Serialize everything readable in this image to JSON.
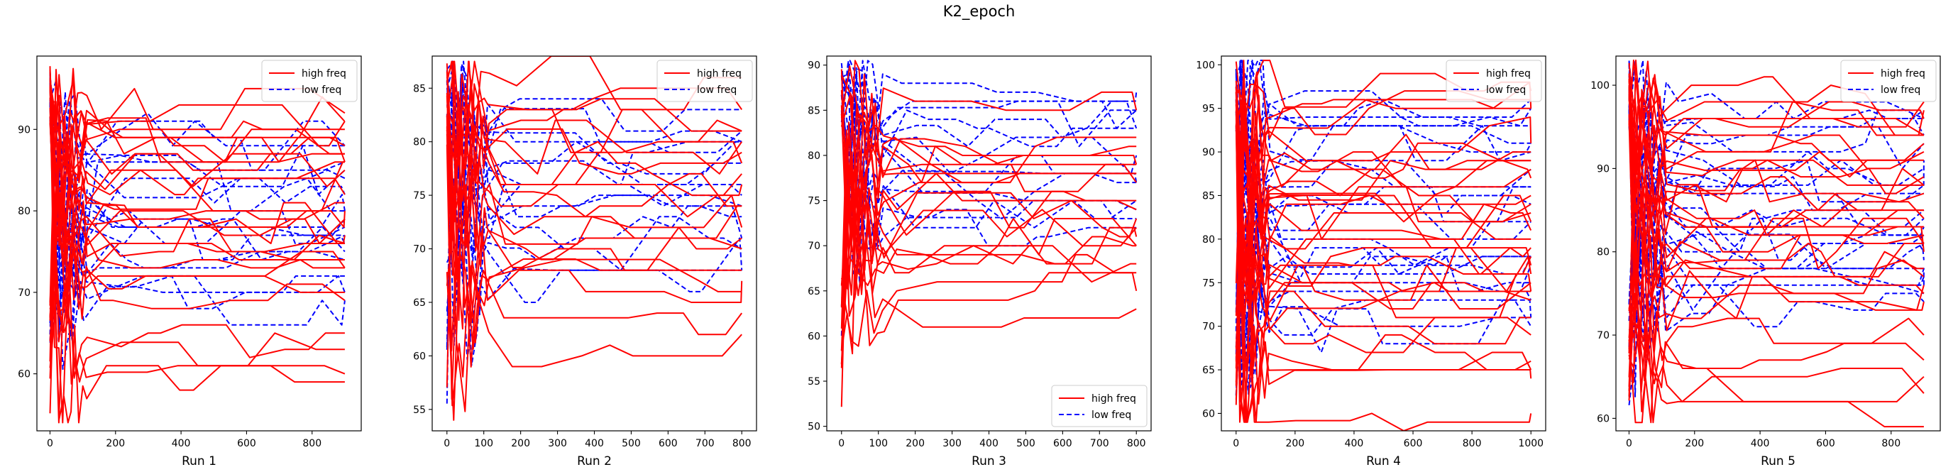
{
  "title": "K2_epoch",
  "chart_data": [
    {
      "type": "line",
      "title": "",
      "xlabel": "Run 1",
      "ylabel": "",
      "xlim": [
        -40,
        950
      ],
      "ylim": [
        53,
        99
      ],
      "xticks": [
        0,
        200,
        400,
        600,
        800
      ],
      "yticks": [
        60,
        70,
        80,
        90
      ],
      "grid": false,
      "legend": {
        "position": "top-right",
        "entries": [
          "high freq",
          "low freq"
        ]
      },
      "series_names": [
        "high freq",
        "low freq"
      ],
      "colors": {
        "high freq": "#ff0000",
        "low freq": "#0000ff"
      },
      "x_extent": 900,
      "high_finals": [
        92,
        91,
        91,
        90,
        89,
        88,
        87,
        86,
        85,
        84,
        83,
        82,
        81,
        80,
        79,
        78,
        77,
        76,
        75,
        74,
        73,
        70,
        69,
        65,
        63,
        62,
        60
      ],
      "low_finals": [
        90,
        88,
        86,
        85,
        84,
        83,
        82,
        80,
        79,
        78,
        77,
        76,
        75,
        74,
        72,
        70,
        69
      ]
    },
    {
      "type": "line",
      "title": "",
      "xlabel": "Run 2",
      "ylabel": "",
      "xlim": [
        -40,
        840
      ],
      "ylim": [
        53,
        88
      ],
      "xticks": [
        0,
        100,
        200,
        300,
        400,
        500,
        600,
        700,
        800
      ],
      "yticks": [
        55,
        60,
        65,
        70,
        75,
        80,
        85
      ],
      "grid": false,
      "legend": {
        "position": "top-right",
        "entries": [
          "high freq",
          "low freq"
        ]
      },
      "series_names": [
        "high freq",
        "low freq"
      ],
      "colors": {
        "high freq": "#ff0000",
        "low freq": "#0000ff"
      },
      "x_extent": 800,
      "high_finals": [
        86,
        83,
        82,
        81,
        80,
        79,
        78,
        77,
        76,
        75,
        74,
        72,
        71,
        70,
        68,
        67,
        66,
        64,
        62
      ],
      "low_finals": [
        83,
        81,
        80,
        79,
        78,
        77,
        76,
        75,
        74,
        73,
        71,
        70,
        68,
        66
      ]
    },
    {
      "type": "line",
      "title": "",
      "xlabel": "Run 3",
      "ylabel": "",
      "xlim": [
        -40,
        840
      ],
      "ylim": [
        49.5,
        91
      ],
      "xticks": [
        0,
        100,
        200,
        300,
        400,
        500,
        600,
        700,
        800
      ],
      "yticks": [
        50,
        55,
        60,
        65,
        70,
        75,
        80,
        85,
        90
      ],
      "grid": false,
      "legend": {
        "position": "bottom-right",
        "entries": [
          "high freq",
          "low freq"
        ]
      },
      "series_names": [
        "high freq",
        "low freq"
      ],
      "colors": {
        "high freq": "#ff0000",
        "low freq": "#0000ff"
      },
      "x_extent": 800,
      "high_finals": [
        85,
        82,
        81,
        80,
        79,
        78,
        77,
        76,
        75,
        74,
        73,
        72,
        71,
        70,
        69,
        68,
        67,
        65,
        63
      ],
      "low_finals": [
        87,
        85,
        84,
        83,
        82,
        80,
        78,
        77,
        76,
        75,
        74,
        73,
        72
      ]
    },
    {
      "type": "line",
      "title": "",
      "xlabel": "Run 4",
      "ylabel": "",
      "xlim": [
        -50,
        1050
      ],
      "ylim": [
        58,
        101
      ],
      "xticks": [
        0,
        200,
        400,
        600,
        800,
        1000
      ],
      "yticks": [
        60,
        65,
        70,
        75,
        80,
        85,
        90,
        95,
        100
      ],
      "grid": false,
      "legend": {
        "position": "top-right",
        "entries": [
          "high freq",
          "low freq"
        ]
      },
      "series_names": [
        "high freq",
        "low freq"
      ],
      "colors": {
        "high freq": "#ff0000",
        "low freq": "#0000ff"
      },
      "x_extent": 1000,
      "high_finals": [
        97,
        95,
        94,
        93,
        91,
        90,
        89,
        88,
        87,
        86,
        85,
        84,
        83,
        82,
        81,
        80,
        79,
        78,
        77,
        76,
        75,
        74,
        73,
        72,
        71,
        69,
        66,
        65,
        64,
        60
      ],
      "low_finals": [
        96,
        95,
        93,
        92,
        91,
        90,
        88,
        86,
        85,
        84,
        82,
        80,
        79,
        78,
        77,
        76,
        75,
        73,
        72,
        71,
        70
      ]
    },
    {
      "type": "line",
      "title": "",
      "xlabel": "Run 5",
      "ylabel": "",
      "xlim": [
        -40,
        950
      ],
      "ylim": [
        58.5,
        103.5
      ],
      "xticks": [
        0,
        200,
        400,
        600,
        800
      ],
      "yticks": [
        60,
        70,
        80,
        90,
        100
      ],
      "grid": false,
      "legend": {
        "position": "top-right",
        "entries": [
          "high freq",
          "low freq"
        ]
      },
      "series_names": [
        "high freq",
        "low freq"
      ],
      "colors": {
        "high freq": "#ff0000",
        "low freq": "#0000ff"
      },
      "x_extent": 900,
      "high_finals": [
        98,
        97,
        96,
        95,
        94,
        93,
        92,
        91,
        90,
        89,
        88,
        87,
        86,
        85,
        84,
        83,
        82,
        81,
        80,
        79,
        78,
        77,
        76,
        75,
        74,
        70,
        67,
        65,
        63,
        62
      ],
      "low_finals": [
        97,
        96,
        95,
        94,
        93,
        91,
        90,
        88,
        87,
        85,
        84,
        83,
        82,
        81,
        80,
        79,
        78,
        77,
        76,
        75,
        74
      ]
    }
  ]
}
